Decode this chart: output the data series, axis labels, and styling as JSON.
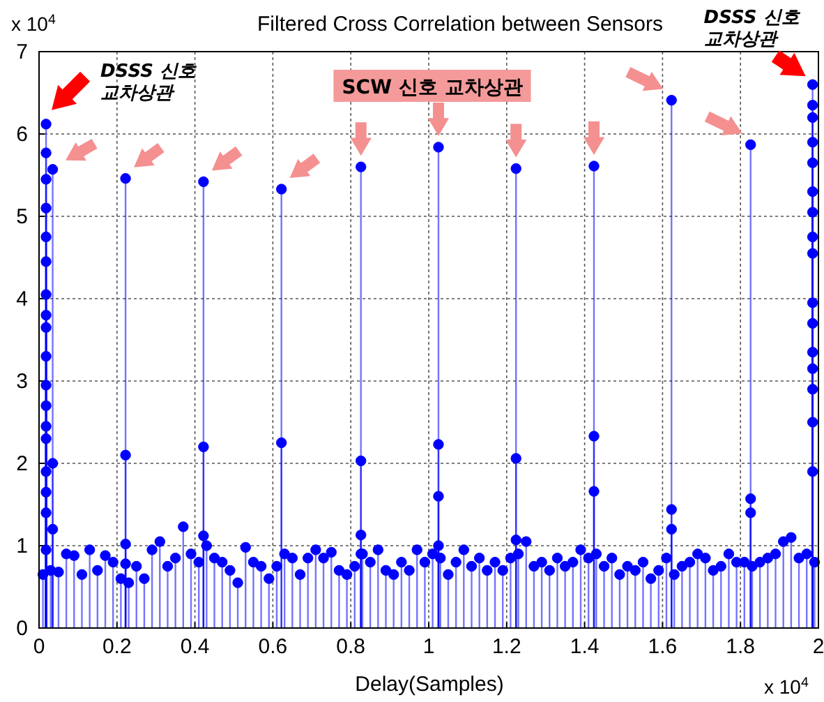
{
  "chart_data": {
    "type": "lollipop",
    "title": "Filtered Cross Correlation between Sensors",
    "xlabel": "Delay(Samples)",
    "annotations": [
      "x 10$^{4}$",
      "x 10$^{4}$",
      "DSSS 신호\n교차상관",
      "SCW 신호 교차상관",
      {
        "text": "DSSS 신호\n교차상관",
        "x": 1.985,
        "y": 6.6
      }
    ],
    "xlim": [
      0,
      2
    ],
    "ylim": [
      0,
      7
    ],
    "xticks": [
      0,
      0.2,
      0.4,
      0.6,
      0.8,
      1,
      1.2,
      1.4,
      1.6,
      1.8,
      2
    ],
    "yticks": [
      0,
      1,
      2,
      3,
      4,
      5,
      6,
      7
    ],
    "grid": true,
    "marker": "circle",
    "line_style": "solid",
    "series": [
      {
        "color": "#0000ff",
        "x": [
          0.01,
          0.03,
          0.05,
          0.07,
          0.09,
          0.11,
          0.13,
          0.15,
          0.17,
          0.19,
          0.21,
          0.23,
          0.25,
          0.27,
          0.29,
          0.31,
          0.33,
          0.35,
          0.37,
          0.39,
          0.41,
          0.43,
          0.45,
          0.47,
          0.49,
          0.51,
          0.53,
          0.55,
          0.57,
          0.59,
          0.61,
          0.63,
          0.65,
          0.67,
          0.69,
          0.71,
          0.73,
          0.75,
          0.77,
          0.79,
          0.81,
          0.83,
          0.85,
          0.87,
          0.89,
          0.91,
          0.93,
          0.95,
          0.97,
          0.99,
          1.01,
          1.03,
          1.05,
          1.07,
          1.09,
          1.11,
          1.13,
          1.15,
          1.17,
          1.19,
          1.21,
          1.23,
          1.25,
          1.27,
          1.29,
          1.31,
          1.33,
          1.35,
          1.37,
          1.39,
          1.41,
          1.43,
          1.45,
          1.47,
          1.49,
          1.51,
          1.53,
          1.55,
          1.57,
          1.59,
          1.61,
          1.63,
          1.65,
          1.67,
          1.69,
          1.71,
          1.73,
          1.75,
          1.77,
          1.79,
          1.81,
          1.83,
          1.85,
          1.87,
          1.89,
          1.91,
          1.93,
          1.95,
          1.97,
          1.99
        ],
        "values": [
          0.65,
          0.7,
          0.68,
          0.9,
          0.88,
          0.65,
          0.95,
          0.7,
          0.88,
          0.8,
          0.6,
          0.55,
          0.75,
          0.6,
          0.95,
          1.05,
          0.75,
          0.85,
          1.23,
          0.9,
          0.8,
          1.0,
          0.85,
          0.8,
          0.7,
          0.55,
          0.98,
          0.8,
          0.75,
          0.6,
          0.75,
          0.9,
          0.85,
          0.65,
          0.85,
          0.95,
          0.85,
          0.92,
          0.7,
          0.65,
          0.75,
          0.9,
          0.8,
          0.95,
          0.7,
          0.65,
          0.8,
          0.7,
          0.95,
          0.8,
          0.9,
          0.85,
          0.65,
          0.8,
          0.95,
          0.75,
          0.85,
          0.7,
          0.8,
          0.7,
          0.85,
          0.9,
          1.05,
          0.75,
          0.8,
          0.7,
          0.85,
          0.75,
          0.8,
          0.95,
          0.85,
          0.9,
          0.75,
          0.85,
          0.65,
          0.75,
          0.7,
          0.8,
          0.6,
          0.7,
          0.85,
          0.65,
          0.75,
          0.8,
          0.9,
          0.85,
          0.7,
          0.75,
          0.9,
          0.8,
          0.8,
          0.75,
          0.8,
          0.85,
          0.9,
          1.05,
          1.1,
          0.85,
          0.9,
          0.8
        ]
      },
      {
        "color": "#0000ff",
        "x": [
          0.018,
          0.018,
          0.035,
          0.018,
          0.018,
          0.018,
          0.018,
          0.018,
          0.018,
          0.018,
          0.018,
          0.018,
          0.018,
          0.018,
          0.018,
          0.035,
          0.018,
          0.018,
          0.018,
          0.035,
          0.018,
          0.222,
          0.222,
          0.222,
          0.222,
          0.422,
          0.422,
          0.422,
          0.622,
          0.622,
          0.826,
          0.826,
          0.826,
          0.826,
          1.025,
          1.025,
          1.025,
          1.025,
          1.224,
          1.224,
          1.224,
          1.424,
          1.424,
          1.424,
          1.623,
          1.623,
          1.623,
          1.826,
          1.826,
          1.826,
          1.985,
          1.985,
          1.985,
          1.985,
          1.985,
          1.985,
          1.985,
          1.985,
          1.985,
          1.985,
          1.985,
          1.985,
          1.985,
          1.985,
          1.985,
          1.985
        ],
        "values": [
          6.12,
          5.77,
          5.57,
          5.45,
          5.1,
          4.75,
          4.45,
          4.05,
          3.8,
          3.65,
          3.3,
          2.95,
          2.7,
          2.45,
          2.3,
          2.0,
          1.9,
          1.65,
          1.4,
          1.2,
          0.95,
          5.46,
          2.1,
          1.02,
          0.78,
          5.42,
          2.2,
          1.12,
          5.33,
          2.25,
          5.6,
          2.03,
          1.13,
          0.9,
          5.84,
          2.23,
          1.6,
          1.0,
          5.58,
          2.06,
          1.07,
          5.61,
          2.33,
          1.66,
          6.41,
          1.44,
          1.2,
          5.87,
          1.57,
          1.4,
          6.6,
          6.35,
          6.2,
          5.9,
          5.65,
          5.3,
          5.05,
          4.75,
          4.55,
          3.95,
          3.7,
          3.35,
          3.15,
          2.9,
          2.5,
          1.9
        ]
      }
    ]
  }
}
